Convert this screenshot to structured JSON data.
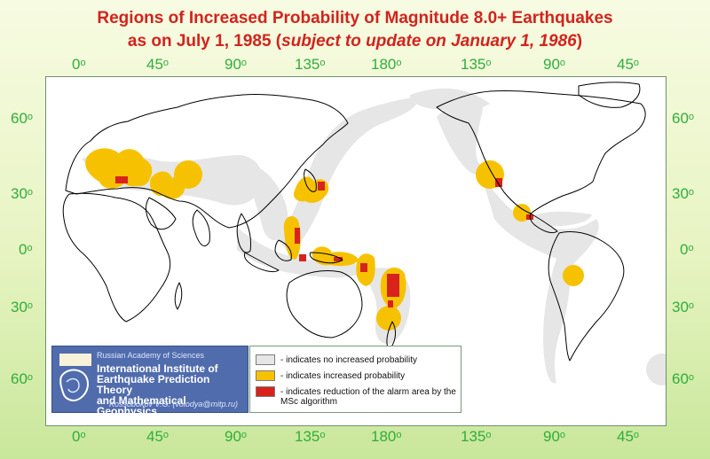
{
  "title": {
    "line1": "Regions of Increased Probability of Magnitude 8.0+ Earthquakes",
    "line2_main": "as on July 1, 1985 (",
    "line2_italic": "subject to update on January 1, 1986",
    "line2_end": ")"
  },
  "longitude_ticks": [
    {
      "deg": "0",
      "unit": "o"
    },
    {
      "deg": "45",
      "unit": "o"
    },
    {
      "deg": "90",
      "unit": "o"
    },
    {
      "deg": "135",
      "unit": "o"
    },
    {
      "deg": "180",
      "unit": "o"
    },
    {
      "deg": "135",
      "unit": "o"
    },
    {
      "deg": "90",
      "unit": "o"
    },
    {
      "deg": "45",
      "unit": "o"
    }
  ],
  "latitude_ticks": [
    {
      "deg": "60",
      "unit": "o"
    },
    {
      "deg": "30",
      "unit": "o"
    },
    {
      "deg": "0",
      "unit": "o"
    },
    {
      "deg": "30",
      "unit": "o"
    },
    {
      "deg": "60",
      "unit": "o"
    }
  ],
  "institute": {
    "academy": "Russian Academy of Sciences",
    "name_lines": [
      "International Institute of",
      "Earthquake Prediction Theory",
      "and Mathematical Geophysics"
    ],
    "credit": "Kossobokov V.G. (volodya@mitp.ru)"
  },
  "legend": [
    {
      "color": "#e6e6e6",
      "text": "- indicates no increased probability"
    },
    {
      "color": "#f6c200",
      "text": "- indicates increased probability"
    },
    {
      "color": "#d8231c",
      "text": "- indicates reduction of the alarm area by the MSc algorithm"
    }
  ],
  "colors": {
    "title": "#d2231d",
    "ticks": "#2fae3b",
    "no_increase": "#e6e6e6",
    "increased": "#f6c200",
    "reduced": "#d8231c",
    "panel": "#516cac"
  }
}
